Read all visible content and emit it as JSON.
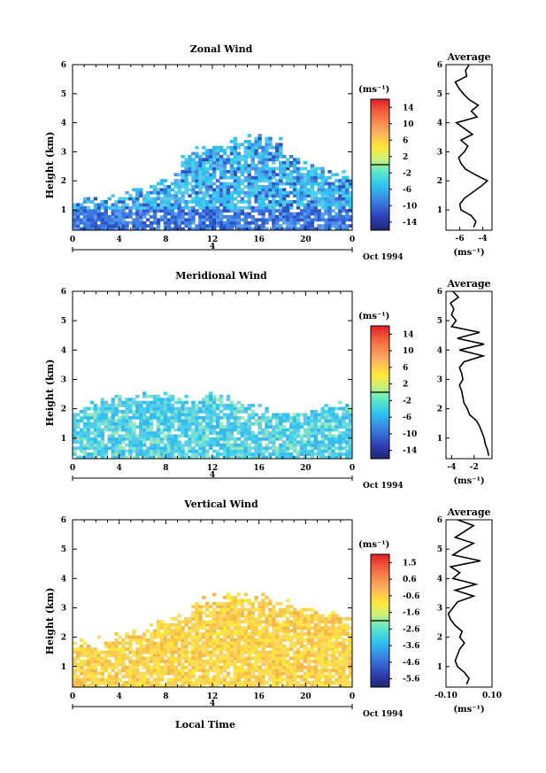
{
  "chart_data": [
    {
      "type": "heatmap",
      "title": "Zonal Wind",
      "ylabel": "Height (km)",
      "xlim": [
        0,
        24
      ],
      "ylim": [
        0.3,
        6
      ],
      "x_ticks": [
        "0",
        "4",
        "8",
        "12",
        "16",
        "20",
        "0"
      ],
      "y_ticks": [
        "1",
        "2",
        "3",
        "4",
        "5",
        "6"
      ],
      "date_label": "Oct 1994",
      "day_label": "4",
      "colorbar": {
        "unit": "(ms⁻¹)",
        "ticks": [
          "14",
          "10",
          "6",
          "2",
          "-2",
          "-6",
          "-10",
          "-14"
        ],
        "range": [
          -16,
          16
        ]
      },
      "profile": {
        "title": "Average",
        "xlabel": "(ms⁻¹)",
        "x_ticks": [
          "-6",
          "-4"
        ],
        "xlim": [
          -7.2,
          -3.2
        ],
        "y_ticks": [
          "1",
          "2",
          "3",
          "4",
          "5",
          "6"
        ],
        "heights": [
          0.4,
          0.6,
          0.8,
          1.0,
          1.2,
          1.4,
          1.6,
          1.8,
          2.0,
          2.2,
          2.4,
          2.6,
          2.8,
          3.0,
          3.2,
          3.4,
          3.6,
          3.8,
          4.0,
          4.2,
          4.4,
          4.6,
          4.8,
          5.0,
          5.2,
          5.4,
          5.6,
          5.8,
          6.0
        ],
        "values": [
          -4.8,
          -4.6,
          -5.0,
          -5.9,
          -6.0,
          -5.6,
          -4.9,
          -4.2,
          -3.6,
          -4.6,
          -5.5,
          -5.9,
          -6.1,
          -5.6,
          -5.3,
          -5.9,
          -4.9,
          -5.6,
          -6.3,
          -4.5,
          -5.0,
          -4.4,
          -5.2,
          -5.7,
          -6.1,
          -6.4,
          -5.4,
          -5.5,
          -5.2
        ]
      }
    },
    {
      "type": "heatmap",
      "title": "Meridional Wind",
      "ylabel": "Height (km)",
      "xlim": [
        0,
        24
      ],
      "ylim": [
        0.3,
        6
      ],
      "x_ticks": [
        "0",
        "4",
        "8",
        "12",
        "16",
        "20",
        "0"
      ],
      "y_ticks": [
        "1",
        "2",
        "3",
        "4",
        "5",
        "6"
      ],
      "date_label": "Oct 1994",
      "day_label": "4",
      "colorbar": {
        "unit": "(ms⁻¹)",
        "ticks": [
          "14",
          "10",
          "6",
          "2",
          "-2",
          "-6",
          "-10",
          "-14"
        ],
        "range": [
          -16,
          16
        ]
      },
      "profile": {
        "title": "Average",
        "xlabel": "(ms⁻¹)",
        "x_ticks": [
          "-4",
          "-2"
        ],
        "xlim": [
          -4.5,
          -0.4
        ],
        "y_ticks": [
          "1",
          "2",
          "3",
          "4",
          "5",
          "6"
        ],
        "heights": [
          0.4,
          0.6,
          0.8,
          1.0,
          1.2,
          1.4,
          1.6,
          1.8,
          2.0,
          2.2,
          2.4,
          2.6,
          2.8,
          3.0,
          3.2,
          3.4,
          3.6,
          3.8,
          4.0,
          4.2,
          4.4,
          4.6,
          4.8,
          5.0,
          5.2,
          5.4,
          5.6,
          5.8,
          6.0
        ],
        "values": [
          -0.7,
          -0.8,
          -1.0,
          -1.1,
          -1.3,
          -1.5,
          -1.8,
          -2.4,
          -2.6,
          -2.9,
          -3.0,
          -3.1,
          -3.3,
          -3.0,
          -3.1,
          -3.3,
          -2.9,
          -1.2,
          -3.3,
          -1.1,
          -3.5,
          -1.5,
          -4.0,
          -3.6,
          -4.0,
          -3.8,
          -4.1,
          -3.4,
          -3.9
        ]
      }
    },
    {
      "type": "heatmap",
      "title": "Vertical Wind",
      "xlabel": "Local Time",
      "ylabel": "Height (km)",
      "xlim": [
        0,
        24
      ],
      "ylim": [
        0.3,
        6
      ],
      "x_ticks": [
        "0",
        "4",
        "8",
        "12",
        "16",
        "20",
        "0"
      ],
      "y_ticks": [
        "1",
        "2",
        "3",
        "4",
        "5",
        "6"
      ],
      "date_label": "Oct 1994",
      "day_label": "4",
      "colorbar": {
        "unit": "(ms⁻¹)",
        "ticks": [
          "1.5",
          "0.6",
          "-0.6",
          "-1.6",
          "-2.6",
          "-3.6",
          "-4.6",
          "-5.6"
        ],
        "range": [
          -6,
          2
        ]
      },
      "profile": {
        "title": "Average",
        "xlabel": "(ms⁻¹)",
        "x_ticks": [
          "-0.10",
          "0.10"
        ],
        "xlim": [
          -0.1,
          0.1
        ],
        "y_ticks": [
          "1",
          "2",
          "3",
          "4",
          "5",
          "6"
        ],
        "heights": [
          0.4,
          0.6,
          0.8,
          1.0,
          1.2,
          1.4,
          1.6,
          1.8,
          2.0,
          2.2,
          2.4,
          2.6,
          2.8,
          3.0,
          3.2,
          3.4,
          3.6,
          3.8,
          4.0,
          4.2,
          4.4,
          4.6,
          4.8,
          5.0,
          5.2,
          5.4,
          5.6,
          5.8,
          6.0
        ],
        "values": [
          -0.01,
          0.0,
          -0.02,
          -0.05,
          -0.06,
          -0.05,
          -0.04,
          -0.02,
          -0.04,
          -0.03,
          -0.06,
          -0.08,
          -0.09,
          -0.07,
          -0.05,
          0.02,
          -0.06,
          0.03,
          -0.07,
          -0.04,
          -0.08,
          0.05,
          -0.07,
          -0.03,
          0.02,
          -0.06,
          -0.02,
          0.02,
          -0.05
        ]
      }
    }
  ]
}
